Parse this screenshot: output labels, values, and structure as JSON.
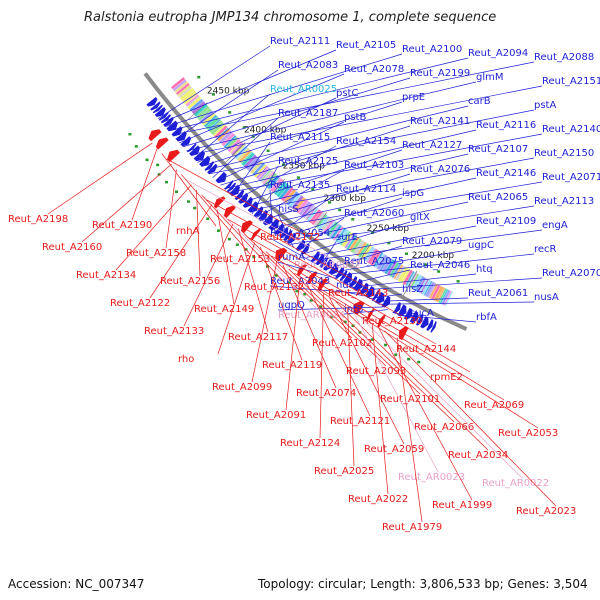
{
  "title": "Ralstonia eutropha JMP134 chromosome 1, complete sequence",
  "footer": {
    "accession": "Accession: NC_007347",
    "summary": "Topology: circular; Length: 3,806,533 bp; Genes: 3,504"
  },
  "colors": {
    "forward": "#1f1fd6",
    "reverse": "#e81a1a",
    "rna_label": "#e9a0c8",
    "highlight_label": "#26b5e5",
    "backbone": "#8a8a8a",
    "background": "#ffffff"
  },
  "scale_ticks": [
    "2450 kbp",
    "2400 kbp",
    "2350 kbp",
    "2300 kbp",
    "2250 kbp",
    "2200 kbp"
  ],
  "forward_labels": [
    "Reut_A2111",
    "Reut_A2105",
    "Reut_A2100",
    "Reut_A2094",
    "Reut_A2088",
    "Reut_A2083",
    "Reut_A2078",
    "Reut_A2199",
    "glmM",
    "Reut_A2151",
    "Reut_AR0025",
    "pstC",
    "prpE",
    "carB",
    "pstA",
    "Reut_A2187",
    "pstB",
    "Reut_A2141",
    "Reut_A2116",
    "Reut_A2140",
    "Reut_A2115",
    "Reut_A2154",
    "Reut_A2127",
    "Reut_A2107",
    "Reut_A2150",
    "Reut_A2125",
    "Reut_A2103",
    "Reut_A2076",
    "Reut_A2146",
    "Reut_A2071",
    "Reut_A2135",
    "Reut_A2114",
    "ispG",
    "Reut_A2065",
    "Reut_A2113",
    "hisS",
    "Reut_A2060",
    "gltX",
    "Reut_A2109",
    "engA",
    "Reut_A2054",
    "surE",
    "Reut_A2079",
    "ugpC",
    "recR",
    "rumA",
    "Reut_A2075",
    "Reut_A2046",
    "htq",
    "Reut_A2070",
    "Reut_A2043",
    "ndk",
    "hisZ",
    "Reut_A2061",
    "nusA",
    "ugpQ",
    "infB",
    "sucA",
    "rbfA",
    "truB",
    "rplI"
  ],
  "reverse_labels": [
    "Reut_A2198",
    "Reut_A2190",
    "rnhA",
    "Reut_A2172",
    "Reut_A2160",
    "Reut_A2158",
    "Reut_A2153",
    "Reut_AR0032",
    "Reut_A2134",
    "Reut_A2156",
    "Reut_A2132",
    "Reut_A2143",
    "Reut_A2122",
    "Reut_A2149",
    "Reut_AR0024",
    "Reut_A2130",
    "Reut_A2133",
    "Reut_A2117",
    "Reut_A2102",
    "Reut_A2144",
    "rho",
    "Reut_A2119",
    "Reut_A2093",
    "rpmE2",
    "Reut_A2099",
    "Reut_A2074",
    "Reut_A2101",
    "Reut_A2069",
    "Reut_A2091",
    "Reut_A2121",
    "Reut_A2066",
    "Reut_A2053",
    "Reut_A2124",
    "Reut_A2059",
    "Reut_A2034",
    "Reut_A2067",
    "Reut_A2025",
    "Reut_AR0023",
    "Reut_AR0022",
    "Reut_A2073",
    "Reut_A2022",
    "Reut_A1999",
    "Reut_A2023",
    "Reut_A1996",
    "Reut_A1979"
  ],
  "rna_labels": [
    "Reut_AR0032",
    "Reut_AR0024",
    "Reut_AR0023",
    "Reut_AR0022"
  ],
  "highlight_labels": [
    "Reut_AR0025"
  ]
}
